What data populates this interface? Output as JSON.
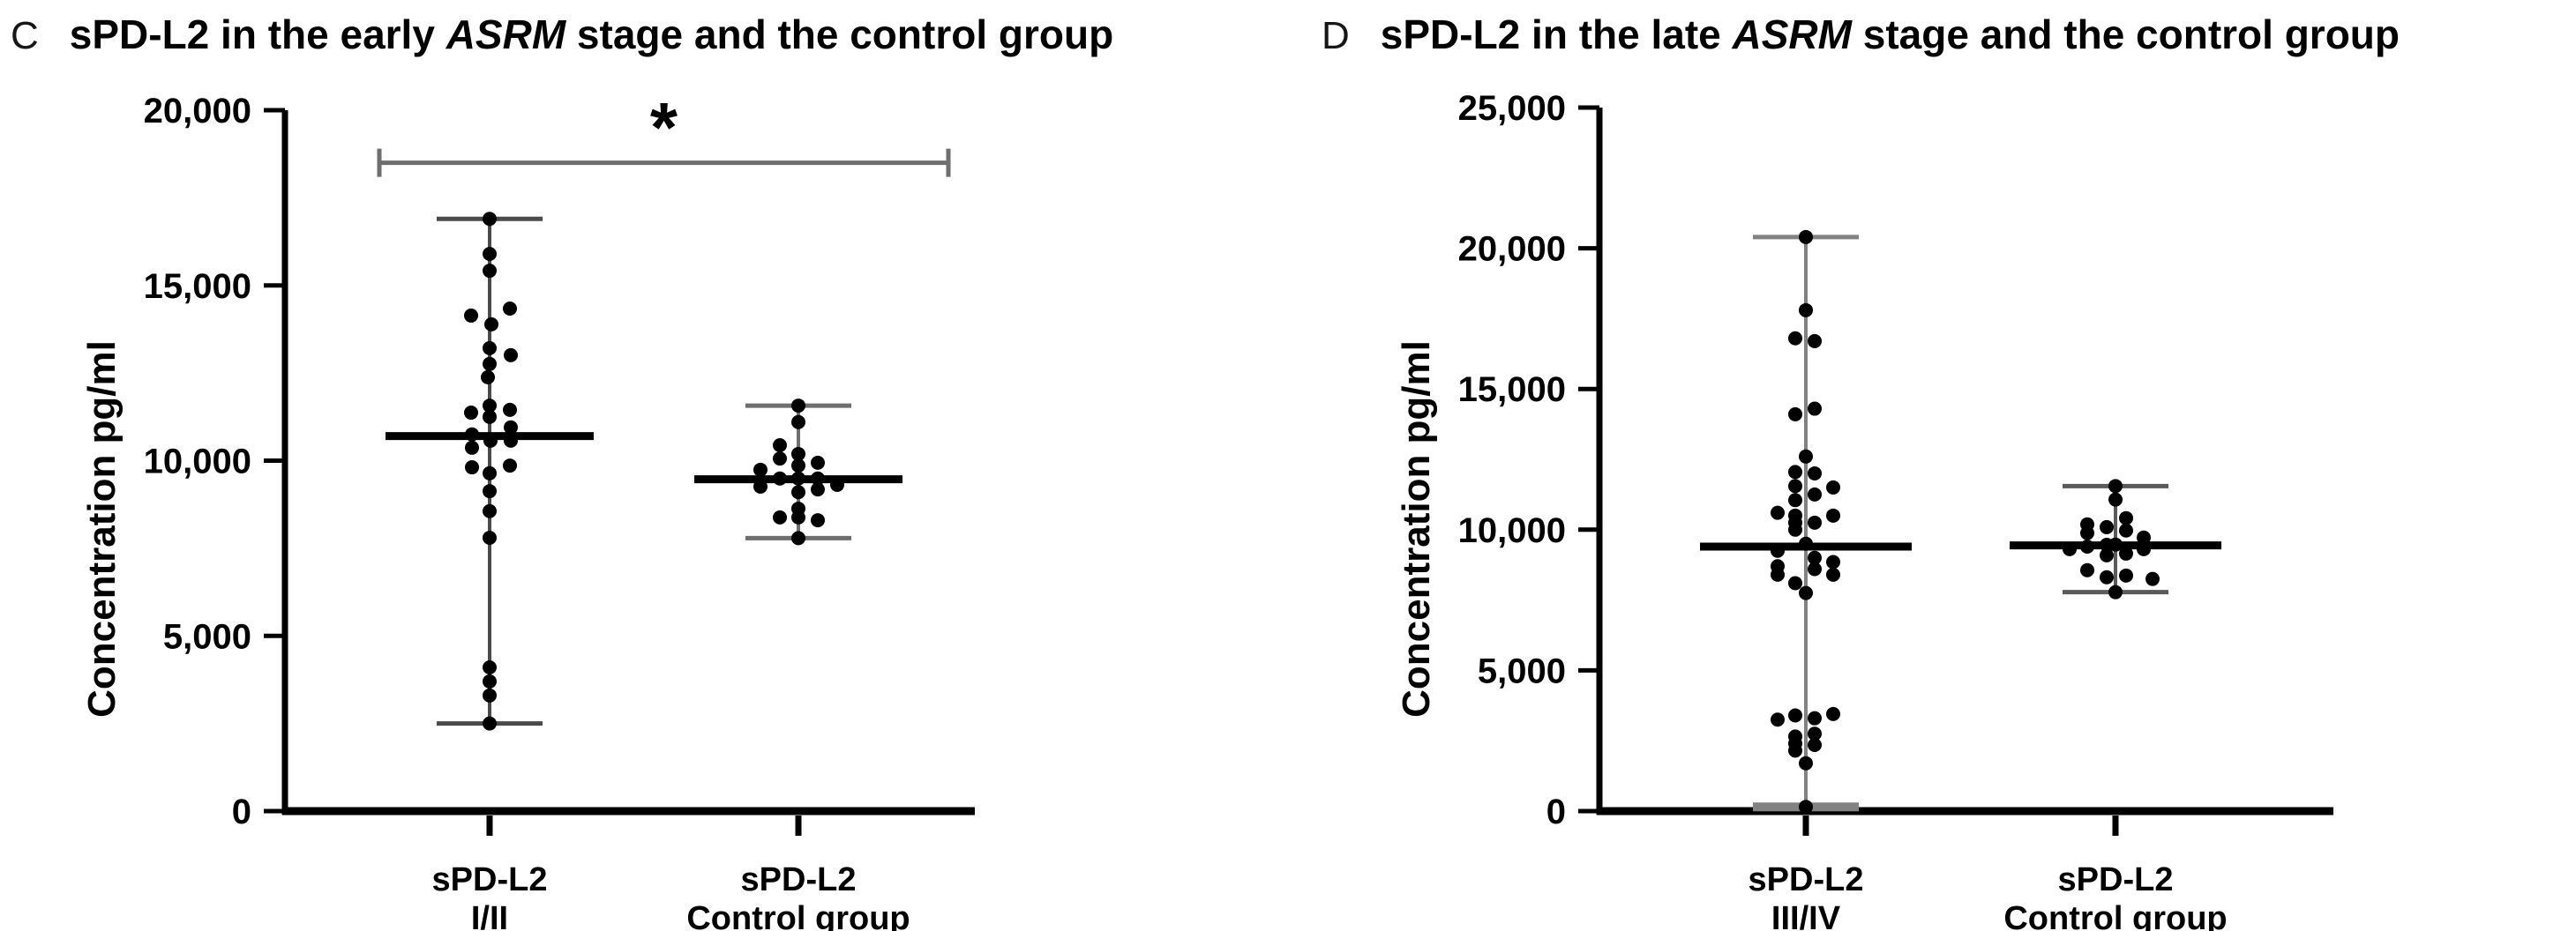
{
  "page": {
    "background": "#ffffff",
    "text_color": "#000000",
    "dot_color": "#000000",
    "mean_line_color": "#000000"
  },
  "panels": [
    {
      "letter": "C",
      "title_prefix": "sPD-L2 in the early ",
      "title_italic": "ASRM",
      "title_suffix": " stage and the control group"
    },
    {
      "letter": "D",
      "title_prefix": "sPD-L2 in the late ",
      "title_italic": "ASRM",
      "title_suffix": " stage and the control group"
    }
  ],
  "chart_data": [
    {
      "type": "scatter",
      "title": "sPD-L2 in the early ASRM stage and the control group",
      "ylabel": "Concentration pg/ml",
      "ylim": [
        0,
        20000
      ],
      "yticks": [
        0,
        5000,
        10000,
        15000,
        20000
      ],
      "ytick_labels": [
        "0",
        "5,000",
        "10,000",
        "15,000",
        "20,000"
      ],
      "grid": false,
      "legend": "none",
      "groups": [
        {
          "label_lines": [
            "sPD-L2",
            "I/II"
          ],
          "mean": 10700,
          "whisker_min": 2500,
          "whisker_max": 16900,
          "whisker_color": "#4a4a4a",
          "points": [
            [
              16900,
              0
            ],
            [
              15900,
              0
            ],
            [
              15420,
              0
            ],
            [
              14340,
              23
            ],
            [
              14140,
              -21
            ],
            [
              13890,
              2
            ],
            [
              13210,
              0
            ],
            [
              13010,
              24
            ],
            [
              12760,
              0
            ],
            [
              12380,
              -2
            ],
            [
              11570,
              0
            ],
            [
              11450,
              23
            ],
            [
              11370,
              -21
            ],
            [
              11250,
              0
            ],
            [
              10950,
              24
            ],
            [
              10750,
              -20
            ],
            [
              10570,
              1
            ],
            [
              10570,
              24
            ],
            [
              10370,
              -20
            ],
            [
              9860,
              23
            ],
            [
              9810,
              -20
            ],
            [
              9640,
              0
            ],
            [
              9130,
              0
            ],
            [
              8560,
              0
            ],
            [
              7800,
              0
            ],
            [
              4100,
              0
            ],
            [
              3700,
              0
            ],
            [
              3300,
              0
            ],
            [
              2500,
              0
            ]
          ]
        },
        {
          "label_lines": [
            "sPD-L2",
            "Control group"
          ],
          "mean": 9470,
          "whisker_min": 7790,
          "whisker_max": 11570,
          "whisker_color": "#6e6e6e",
          "points": [
            [
              11570,
              0
            ],
            [
              11100,
              0
            ],
            [
              10440,
              -21
            ],
            [
              10190,
              0
            ],
            [
              10060,
              -21
            ],
            [
              9940,
              22
            ],
            [
              9860,
              0
            ],
            [
              9740,
              -43
            ],
            [
              9490,
              -21
            ],
            [
              9490,
              0
            ],
            [
              9490,
              22
            ],
            [
              9310,
              44
            ],
            [
              9260,
              -43
            ],
            [
              9180,
              22
            ],
            [
              9100,
              0
            ],
            [
              8630,
              0
            ],
            [
              8380,
              -21
            ],
            [
              8380,
              0
            ],
            [
              8300,
              22
            ],
            [
              7790,
              0
            ]
          ]
        }
      ],
      "significance": {
        "label": "*",
        "y_value": 18500,
        "color": "#6e6e6e",
        "between": [
          "sPD-L2 I/II",
          "sPD-L2 Control group"
        ]
      }
    },
    {
      "type": "scatter",
      "title": "sPD-L2 in the late ASRM stage and the control group",
      "ylabel": "Concentration pg/ml",
      "ylim": [
        0,
        25000
      ],
      "yticks": [
        0,
        5000,
        10000,
        15000,
        20000,
        25000
      ],
      "ytick_labels": [
        "0",
        "5,000",
        "10,000",
        "15,000",
        "20,000",
        "25,000"
      ],
      "grid": false,
      "legend": "none",
      "groups": [
        {
          "label_lines": [
            "sPD-L2",
            "III/IV"
          ],
          "mean": 9400,
          "whisker_min": 150,
          "whisker_max": 20400,
          "whisker_color": "#828282",
          "thick_bottom_cap": true,
          "points": [
            [
              20400,
              0
            ],
            [
              17800,
              0
            ],
            [
              16800,
              -12
            ],
            [
              16700,
              10
            ],
            [
              14300,
              10
            ],
            [
              14100,
              -12
            ],
            [
              12600,
              0
            ],
            [
              12050,
              -12
            ],
            [
              12000,
              10
            ],
            [
              11550,
              -12
            ],
            [
              11500,
              31
            ],
            [
              11250,
              10
            ],
            [
              11050,
              -12
            ],
            [
              10600,
              -32
            ],
            [
              10500,
              -12
            ],
            [
              10500,
              31
            ],
            [
              10250,
              -12
            ],
            [
              10250,
              10
            ],
            [
              10000,
              -12
            ],
            [
              9500,
              0
            ],
            [
              9250,
              -32
            ],
            [
              9000,
              10
            ],
            [
              8850,
              31
            ],
            [
              8700,
              -32
            ],
            [
              8600,
              10
            ],
            [
              8400,
              -32
            ],
            [
              8400,
              31
            ],
            [
              8100,
              -12
            ],
            [
              7750,
              0
            ],
            [
              3450,
              31
            ],
            [
              3400,
              -12
            ],
            [
              3300,
              10
            ],
            [
              3250,
              -32
            ],
            [
              2750,
              10
            ],
            [
              2650,
              -12
            ],
            [
              2400,
              -12
            ],
            [
              2350,
              10
            ],
            [
              2150,
              -12
            ],
            [
              1700,
              0
            ],
            [
              150,
              0
            ]
          ]
        },
        {
          "label_lines": [
            "sPD-L2",
            "Control group"
          ],
          "mean": 9440,
          "whisker_min": 7780,
          "whisker_max": 11550,
          "whisker_color": "#5a5a5a",
          "points": [
            [
              11550,
              0
            ],
            [
              11070,
              0
            ],
            [
              10410,
              12
            ],
            [
              10190,
              -32
            ],
            [
              10090,
              -10
            ],
            [
              9970,
              12
            ],
            [
              9880,
              -32
            ],
            [
              9720,
              32
            ],
            [
              9470,
              0
            ],
            [
              9460,
              -10
            ],
            [
              9400,
              -32
            ],
            [
              9310,
              -52
            ],
            [
              9310,
              32
            ],
            [
              9150,
              12
            ],
            [
              9090,
              -10
            ],
            [
              8560,
              -32
            ],
            [
              8370,
              12
            ],
            [
              8310,
              -10
            ],
            [
              8250,
              42
            ],
            [
              7780,
              0
            ]
          ]
        }
      ]
    }
  ]
}
